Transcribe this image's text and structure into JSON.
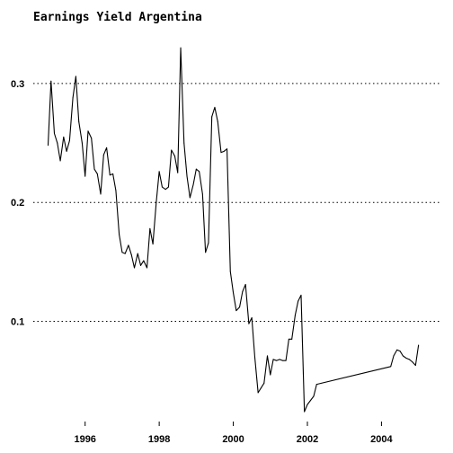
{
  "chart_data": {
    "type": "line",
    "title": "Earnings Yield Argentina",
    "xlabel": "",
    "ylabel": "",
    "xlim": [
      1994.6,
      2005.3
    ],
    "ylim": [
      0.018,
      0.34
    ],
    "x_ticks": [
      1996,
      1998,
      2000,
      2002,
      2004
    ],
    "x_tick_labels": [
      "1996",
      "1998",
      "2000",
      "2002",
      "2004"
    ],
    "y_ticks": [
      0.1,
      0.2,
      0.3
    ],
    "y_tick_labels": [
      "0.1",
      "0.2",
      "0.3"
    ],
    "grid": "horizontal dotted",
    "legend": "none",
    "series": [
      {
        "x": [
          1995.0,
          1995.08,
          1995.17,
          1995.25,
          1995.33,
          1995.42,
          1995.5,
          1995.58,
          1995.67,
          1995.75,
          1995.83,
          1995.92,
          1996.0,
          1996.08,
          1996.17,
          1996.25,
          1996.33,
          1996.42,
          1996.5,
          1996.58,
          1996.67,
          1996.75,
          1996.83,
          1996.92,
          1997.0,
          1997.08,
          1997.17,
          1997.25,
          1997.33,
          1997.42,
          1997.5,
          1997.58,
          1997.67,
          1997.75,
          1997.83,
          1997.92,
          1998.0,
          1998.08,
          1998.17,
          1998.25,
          1998.33,
          1998.42,
          1998.5,
          1998.58,
          1998.67,
          1998.75,
          1998.83,
          1998.92,
          1999.0,
          1999.08,
          1999.17,
          1999.25,
          1999.33,
          1999.42,
          1999.5,
          1999.58,
          1999.67,
          1999.75,
          1999.83,
          1999.92,
          2000.0,
          2000.08,
          2000.17,
          2000.25,
          2000.33,
          2000.42,
          2000.5,
          2000.58,
          2000.67,
          2000.75,
          2000.83,
          2000.92,
          2001.0,
          2001.08,
          2001.17,
          2001.25,
          2001.33,
          2001.42,
          2001.5,
          2001.58,
          2001.67,
          2001.75,
          2001.83,
          2001.92,
          2002.0,
          2002.17,
          2002.25,
          2004.25,
          2004.33,
          2004.42,
          2004.5,
          2004.58,
          2004.67,
          2004.75,
          2004.83,
          2004.92,
          2005.0
        ],
        "y": [
          0.248,
          0.302,
          0.258,
          0.25,
          0.235,
          0.255,
          0.243,
          0.252,
          0.288,
          0.306,
          0.268,
          0.25,
          0.222,
          0.26,
          0.254,
          0.228,
          0.224,
          0.207,
          0.24,
          0.246,
          0.223,
          0.224,
          0.21,
          0.173,
          0.158,
          0.157,
          0.164,
          0.156,
          0.145,
          0.157,
          0.147,
          0.151,
          0.145,
          0.178,
          0.165,
          0.2,
          0.226,
          0.213,
          0.211,
          0.213,
          0.244,
          0.239,
          0.225,
          0.33,
          0.25,
          0.222,
          0.204,
          0.215,
          0.228,
          0.226,
          0.207,
          0.158,
          0.166,
          0.272,
          0.28,
          0.268,
          0.242,
          0.243,
          0.245,
          0.142,
          0.124,
          0.109,
          0.112,
          0.125,
          0.131,
          0.098,
          0.103,
          0.07,
          0.04,
          0.044,
          0.048,
          0.071,
          0.055,
          0.068,
          0.067,
          0.068,
          0.067,
          0.067,
          0.085,
          0.085,
          0.105,
          0.117,
          0.122,
          0.024,
          0.03,
          0.037,
          0.047,
          0.062,
          0.071,
          0.076,
          0.075,
          0.071,
          0.069,
          0.068,
          0.066,
          0.063,
          0.08
        ]
      }
    ]
  }
}
